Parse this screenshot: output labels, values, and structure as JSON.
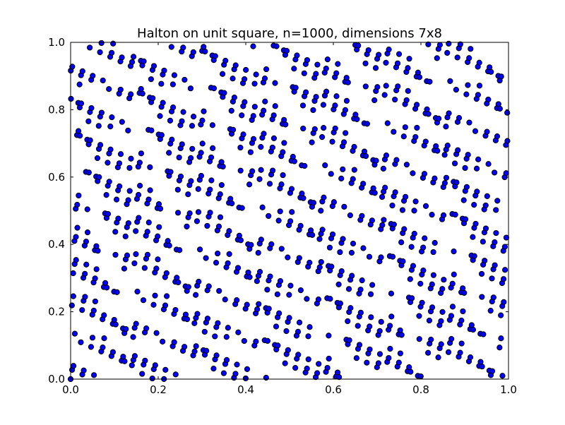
{
  "chart_data": {
    "type": "scatter",
    "title": "Halton on unit square, n=1000, dimensions 7x8",
    "xlabel": "",
    "ylabel": "",
    "xlim": [
      0.0,
      1.0
    ],
    "ylim": [
      0.0,
      1.0
    ],
    "n_points": 1000,
    "sequence": "halton",
    "bases": [
      7,
      8
    ],
    "grid": false,
    "legend": "none",
    "x_ticks": [
      "0.0",
      "0.2",
      "0.4",
      "0.6",
      "0.8",
      "1.0"
    ],
    "y_ticks": [
      "0.0",
      "0.2",
      "0.4",
      "0.6",
      "0.8",
      "1.0"
    ],
    "marker_color": "#0000ff",
    "marker_edge_color": "#000000"
  }
}
